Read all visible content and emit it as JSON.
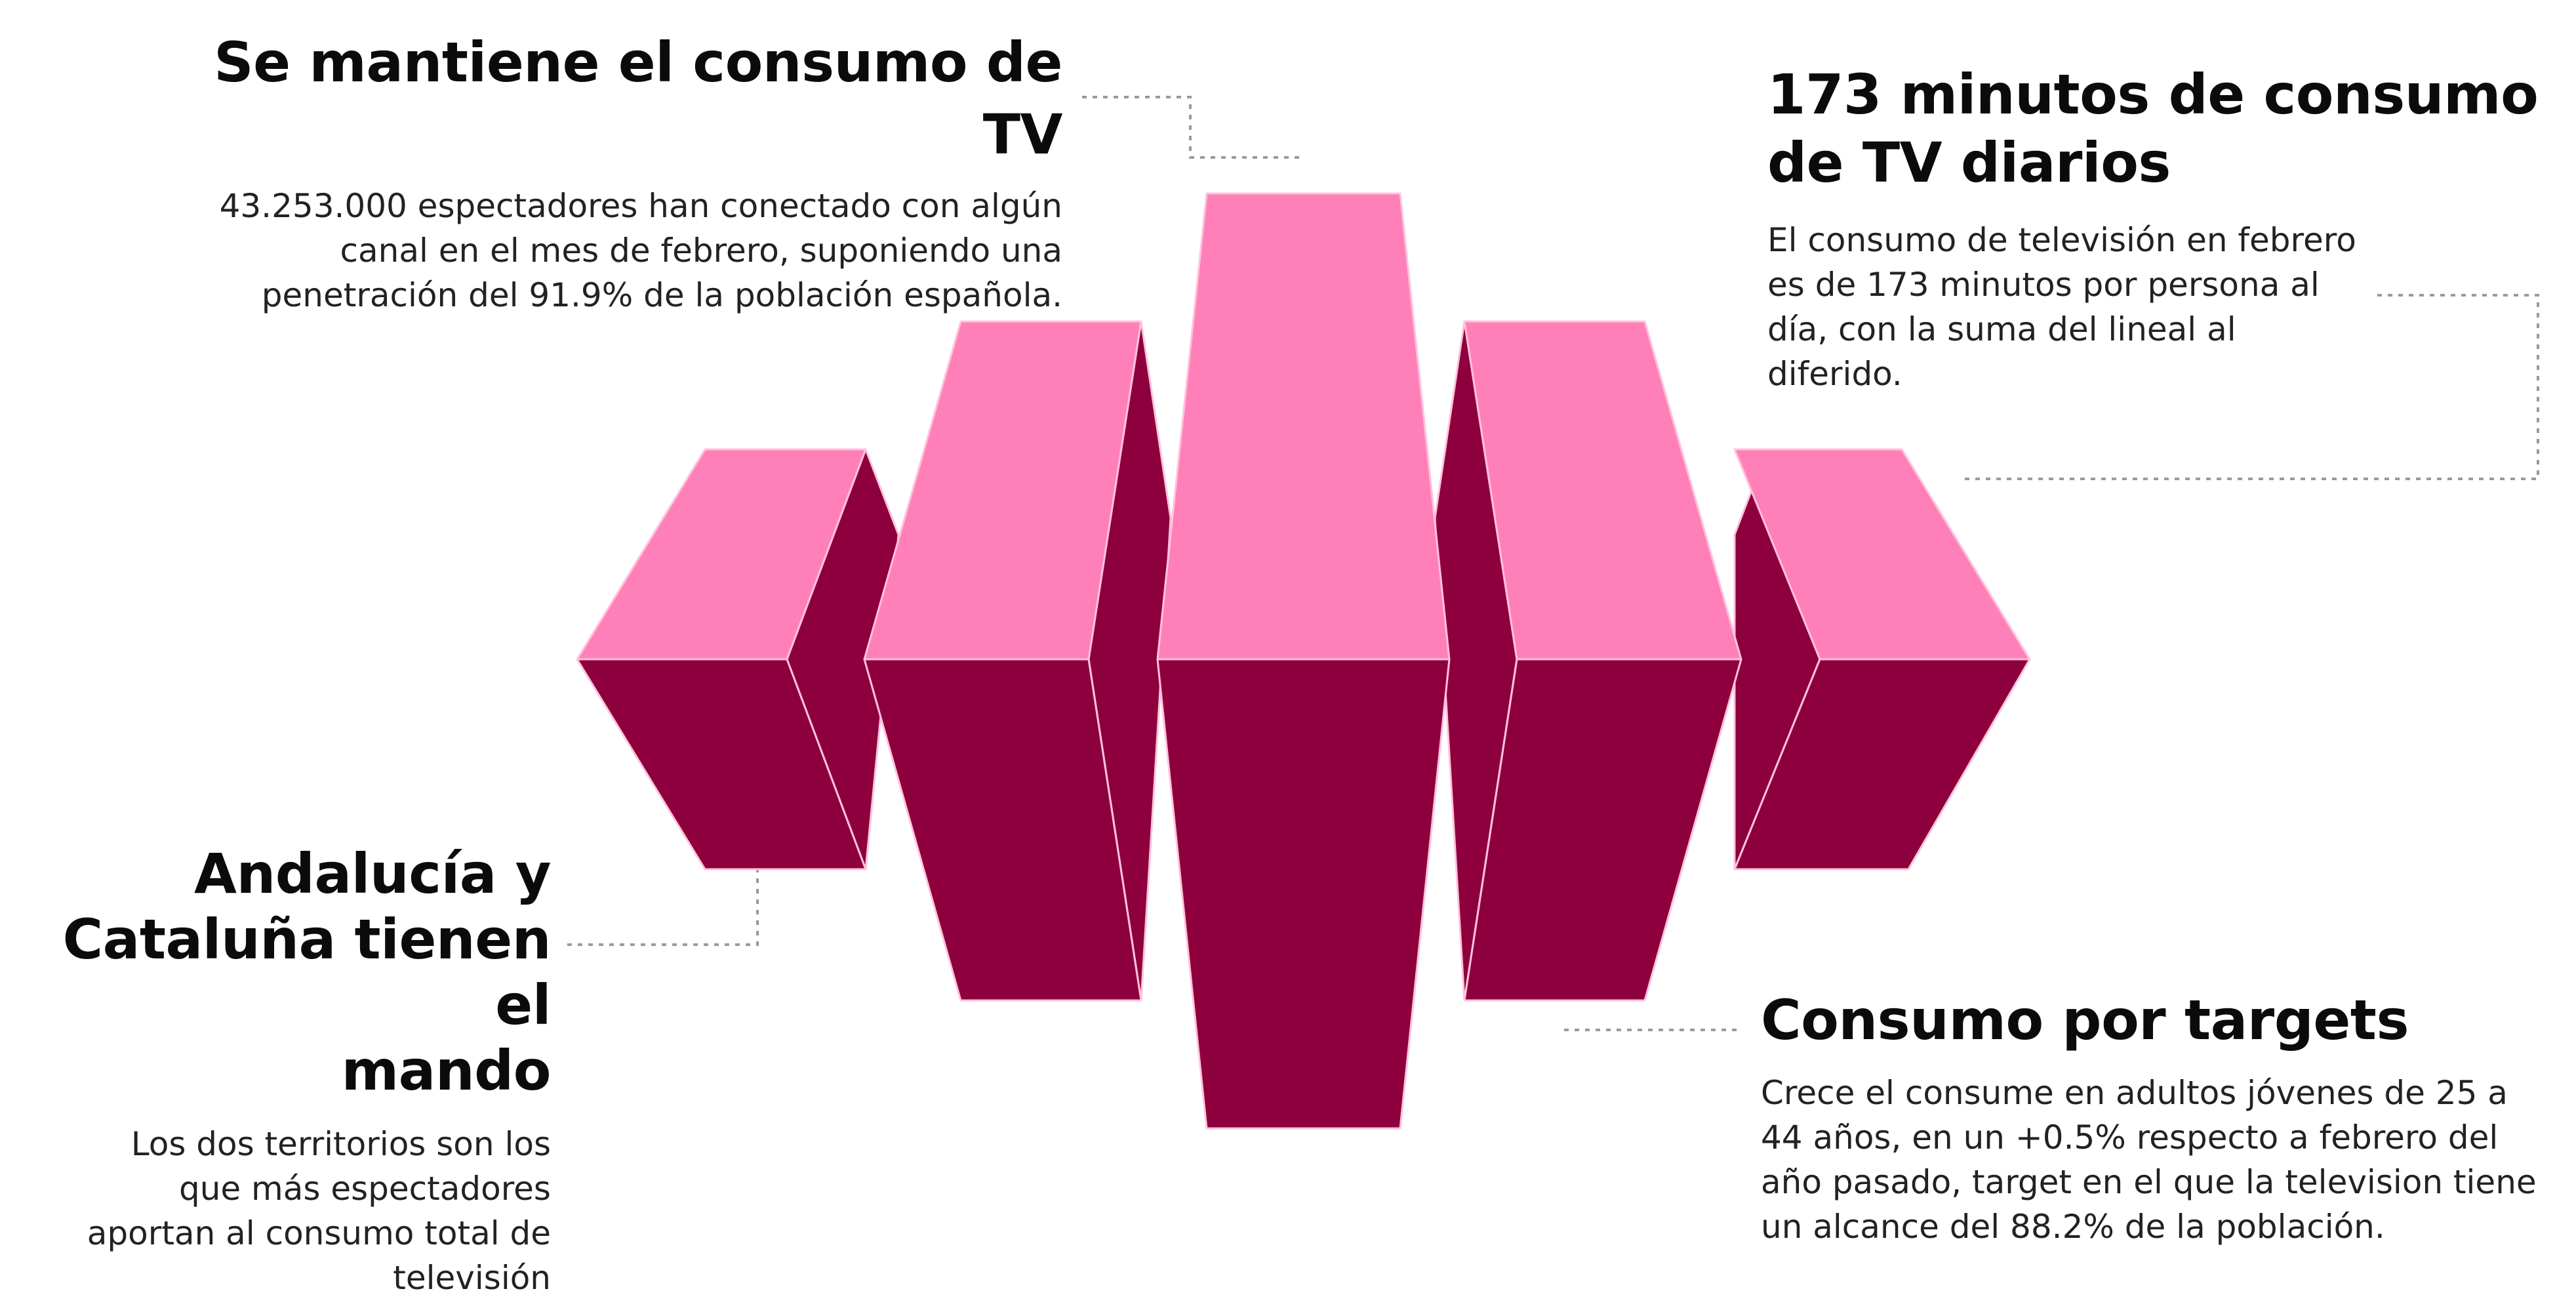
{
  "colors": {
    "top_face": "#ff80b9",
    "side_face": "#8e003d",
    "edge": "#ffc2dc",
    "leader_line": "#9a9a9a"
  },
  "blocks": {
    "top_left": {
      "title": "Se mantiene el consumo de TV",
      "lines": [
        "43.253.000 espectadores han conectado con algún",
        "canal en el mes de febrero, suponiendo una",
        "penetración del 91.9% de la población española."
      ]
    },
    "top_right": {
      "title_lines": [
        "173 minutos de consumo",
        "de TV diarios"
      ],
      "lines": [
        "El consumo de televisión en febrero",
        "es de 173 minutos por persona al",
        "día, con la suma del lineal al",
        "diferido."
      ]
    },
    "bottom_left": {
      "title_lines": [
        "Andalucía y",
        "Cataluña tienen el",
        "mando"
      ],
      "lines": [
        "Los dos territorios son los",
        "que más espectadores",
        "aportan al consumo total de",
        "televisión"
      ]
    },
    "bottom_right": {
      "title": "Consumo por targets",
      "lines": [
        "Crece el consume en adultos jóvenes de 25 a",
        "44 años, en un +0.5% respecto a febrero del",
        "año pasado, target en el que la television tiene",
        "un alcance del 88.2% de la población."
      ]
    }
  }
}
